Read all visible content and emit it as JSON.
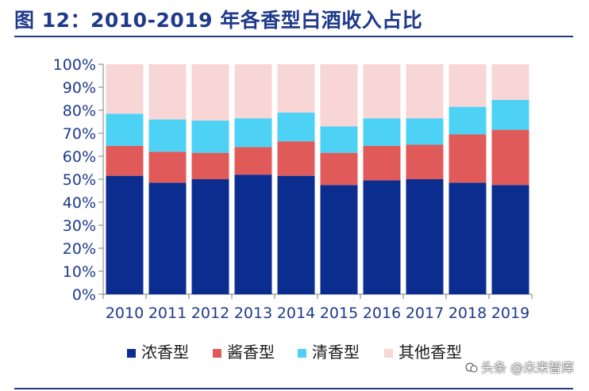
{
  "figure": {
    "title": "图 12：2010-2019 年各香型白酒收入占比"
  },
  "watermark": {
    "text": "头条 @未来智库"
  },
  "chart_data": {
    "type": "bar",
    "stacked": true,
    "categories": [
      "2010",
      "2011",
      "2012",
      "2013",
      "2014",
      "2015",
      "2016",
      "2017",
      "2018",
      "2019"
    ],
    "series": [
      {
        "name": "浓香型",
        "color": "#0a2d8f",
        "values": [
          51.5,
          48.5,
          50.0,
          52.0,
          51.5,
          47.5,
          49.5,
          50.0,
          48.5,
          47.5
        ]
      },
      {
        "name": "酱香型",
        "color": "#e05a5a",
        "values": [
          13.0,
          13.5,
          11.5,
          12.0,
          15.0,
          14.0,
          15.0,
          15.0,
          21.0,
          24.0
        ]
      },
      {
        "name": "清香型",
        "color": "#4dd2f5",
        "values": [
          14.0,
          14.0,
          14.0,
          12.5,
          12.5,
          11.5,
          12.0,
          11.5,
          12.0,
          13.0
        ]
      },
      {
        "name": "其他香型",
        "color": "#f9d6d6",
        "values": [
          21.5,
          24.0,
          24.5,
          23.5,
          21.0,
          27.0,
          23.5,
          23.5,
          18.5,
          15.5
        ]
      }
    ],
    "y_ticks": [
      "0%",
      "10%",
      "20%",
      "30%",
      "40%",
      "50%",
      "60%",
      "70%",
      "80%",
      "90%",
      "100%"
    ],
    "ylim": [
      0,
      100
    ],
    "grid": false,
    "legend_position": "bottom"
  }
}
